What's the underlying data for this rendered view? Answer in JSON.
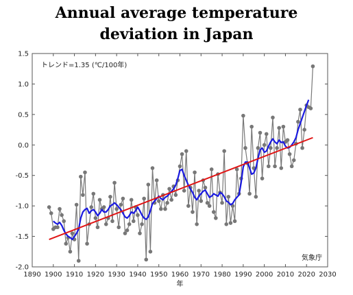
{
  "title_lines": [
    "Annual average temperature",
    "deviation in Japan"
  ],
  "trend_label": "トレンド=1.35 (℃/100年)",
  "source_label": "気象庁",
  "colors": {
    "annual": "#777777",
    "running_mean": "#1a1ae0",
    "trend": "#e01414",
    "frame": "#555555"
  },
  "chart_data": {
    "type": "line",
    "title": "Annual average temperature deviation in Japan",
    "xlabel": "年",
    "ylabel": "",
    "xlim": [
      1890,
      2030
    ],
    "ylim": [
      -2.0,
      1.5
    ],
    "xticks": [
      1890,
      1900,
      1910,
      1920,
      1930,
      1940,
      1950,
      1960,
      1970,
      1980,
      1990,
      2000,
      2010,
      2020,
      2030
    ],
    "yticks": [
      -2.0,
      -1.5,
      -1.0,
      -0.5,
      0.0,
      0.5,
      1.0,
      1.5
    ],
    "grid": false,
    "series": [
      {
        "style": "line+markers",
        "x": [
          1898,
          1899,
          1900,
          1901,
          1902,
          1903,
          1904,
          1905,
          1906,
          1907,
          1908,
          1909,
          1910,
          1911,
          1912,
          1913,
          1914,
          1915,
          1916,
          1917,
          1918,
          1919,
          1920,
          1921,
          1922,
          1923,
          1924,
          1925,
          1926,
          1927,
          1928,
          1929,
          1930,
          1931,
          1932,
          1933,
          1934,
          1935,
          1936,
          1937,
          1938,
          1939,
          1940,
          1941,
          1942,
          1943,
          1944,
          1945,
          1946,
          1947,
          1948,
          1949,
          1950,
          1951,
          1952,
          1953,
          1954,
          1955,
          1956,
          1957,
          1958,
          1959,
          1960,
          1961,
          1962,
          1963,
          1964,
          1965,
          1966,
          1967,
          1968,
          1969,
          1970,
          1971,
          1972,
          1973,
          1974,
          1975,
          1976,
          1977,
          1978,
          1979,
          1980,
          1981,
          1982,
          1983,
          1984,
          1985,
          1986,
          1987,
          1988,
          1989,
          1990,
          1991,
          1992,
          1993,
          1994,
          1995,
          1996,
          1997,
          1998,
          1999,
          2000,
          2001,
          2002,
          2003,
          2004,
          2005,
          2006,
          2007,
          2008,
          2009,
          2010,
          2011,
          2012,
          2013,
          2014,
          2015,
          2016,
          2017,
          2018,
          2019,
          2020,
          2021,
          2022,
          2023
        ],
        "y": [
          -1.02,
          -1.12,
          -1.38,
          -1.35,
          -1.35,
          -1.05,
          -1.15,
          -1.25,
          -1.62,
          -1.52,
          -1.75,
          -1.45,
          -1.55,
          -0.98,
          -1.9,
          -0.52,
          -0.82,
          -0.45,
          -1.62,
          -1.3,
          -1.02,
          -0.8,
          -1.2,
          -1.35,
          -0.9,
          -1.05,
          -1.02,
          -1.3,
          -1.2,
          -0.85,
          -1.25,
          -0.62,
          -1.05,
          -1.35,
          -0.98,
          -0.88,
          -1.45,
          -1.4,
          -1.3,
          -0.9,
          -1.25,
          -1.02,
          -1.15,
          -1.45,
          -1.3,
          -0.88,
          -1.88,
          -0.65,
          -1.75,
          -0.38,
          -0.95,
          -0.58,
          -0.92,
          -1.05,
          -0.82,
          -1.05,
          -0.95,
          -0.72,
          -0.9,
          -0.68,
          -0.82,
          -0.58,
          -0.35,
          -0.15,
          -0.75,
          -0.1,
          -1.0,
          -0.7,
          -1.1,
          -0.45,
          -1.3,
          -0.75,
          -0.92,
          -0.58,
          -0.7,
          -0.95,
          -1.0,
          -0.4,
          -1.1,
          -1.2,
          -0.48,
          -0.78,
          -0.95,
          -0.1,
          -1.3,
          -0.85,
          -1.28,
          -1.0,
          -1.25,
          -0.4,
          -0.8,
          -0.55,
          0.48,
          -0.05,
          -0.3,
          -0.8,
          0.3,
          -0.38,
          -0.85,
          -0.05,
          0.2,
          -0.55,
          0.0,
          0.18,
          -0.35,
          -0.05,
          0.45,
          -0.35,
          -0.05,
          0.28,
          -0.38,
          0.3,
          0.05,
          0.08,
          -0.15,
          -0.35,
          -0.25,
          0.02,
          0.38,
          0.58,
          -0.05,
          0.25,
          0.65,
          0.62,
          0.6,
          1.29
        ]
      },
      {
        "style": "smooth",
        "x": [
          1900,
          1901,
          1902,
          1903,
          1904,
          1905,
          1906,
          1907,
          1908,
          1909,
          1910,
          1911,
          1912,
          1913,
          1914,
          1915,
          1916,
          1917,
          1918,
          1919,
          1920,
          1921,
          1922,
          1923,
          1924,
          1925,
          1926,
          1927,
          1928,
          1929,
          1930,
          1931,
          1932,
          1933,
          1934,
          1935,
          1936,
          1937,
          1938,
          1939,
          1940,
          1941,
          1942,
          1943,
          1944,
          1945,
          1946,
          1947,
          1948,
          1949,
          1950,
          1951,
          1952,
          1953,
          1954,
          1955,
          1956,
          1957,
          1958,
          1959,
          1960,
          1961,
          1962,
          1963,
          1964,
          1965,
          1966,
          1967,
          1968,
          1969,
          1970,
          1971,
          1972,
          1973,
          1974,
          1975,
          1976,
          1977,
          1978,
          1979,
          1980,
          1981,
          1982,
          1983,
          1984,
          1985,
          1986,
          1987,
          1988,
          1989,
          1990,
          1991,
          1992,
          1993,
          1994,
          1995,
          1996,
          1997,
          1998,
          1999,
          2000,
          2001,
          2002,
          2003,
          2004,
          2005,
          2006,
          2007,
          2008,
          2009,
          2010,
          2011,
          2012,
          2013,
          2014,
          2015,
          2016,
          2017,
          2018,
          2019,
          2020,
          2021
        ],
        "y": [
          -1.25,
          -1.28,
          -1.3,
          -1.27,
          -1.32,
          -1.4,
          -1.46,
          -1.5,
          -1.52,
          -1.55,
          -1.5,
          -1.45,
          -1.38,
          -1.2,
          -1.1,
          -1.06,
          -1.04,
          -1.12,
          -1.08,
          -1.06,
          -1.1,
          -1.16,
          -1.12,
          -1.06,
          -1.1,
          -1.1,
          -1.06,
          -1.0,
          -0.98,
          -0.95,
          -0.98,
          -1.02,
          -1.06,
          -1.12,
          -1.18,
          -1.2,
          -1.16,
          -1.1,
          -1.12,
          -1.08,
          -1.02,
          -1.08,
          -1.15,
          -1.2,
          -1.22,
          -1.18,
          -1.08,
          -0.96,
          -0.92,
          -0.88,
          -0.84,
          -0.88,
          -0.9,
          -0.86,
          -0.84,
          -0.8,
          -0.76,
          -0.72,
          -0.66,
          -0.55,
          -0.42,
          -0.4,
          -0.5,
          -0.58,
          -0.66,
          -0.72,
          -0.78,
          -0.86,
          -0.9,
          -0.84,
          -0.8,
          -0.76,
          -0.74,
          -0.8,
          -0.86,
          -0.84,
          -0.8,
          -0.82,
          -0.84,
          -0.78,
          -0.8,
          -0.85,
          -0.92,
          -0.94,
          -0.98,
          -0.96,
          -0.9,
          -0.86,
          -0.82,
          -0.62,
          -0.36,
          -0.28,
          -0.28,
          -0.38,
          -0.48,
          -0.46,
          -0.38,
          -0.22,
          -0.08,
          -0.05,
          -0.12,
          -0.1,
          -0.02,
          0.05,
          0.1,
          0.05,
          0.02,
          0.08,
          0.04,
          0.05,
          -0.02,
          -0.05,
          -0.04,
          0.0,
          0.05,
          0.12,
          0.25,
          0.35,
          0.45,
          0.55,
          0.65,
          0.74
        ]
      },
      {
        "style": "trend",
        "x": [
          1898,
          2023
        ],
        "y": [
          -1.55,
          0.12
        ]
      }
    ]
  }
}
